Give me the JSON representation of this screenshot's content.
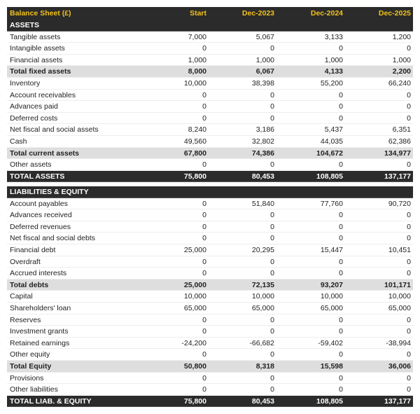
{
  "header": {
    "title": "Balance Sheet (£)",
    "columns": [
      "Start",
      "Dec-2023",
      "Dec-2024",
      "Dec-2025"
    ]
  },
  "sections": [
    {
      "title": "ASSETS",
      "rows": [
        {
          "label": "Tangible assets",
          "values": [
            "7,000",
            "5,067",
            "3,133",
            "1,200"
          ]
        },
        {
          "label": "Intangible assets",
          "values": [
            "0",
            "0",
            "0",
            "0"
          ]
        },
        {
          "label": "Financial assets",
          "values": [
            "1,000",
            "1,000",
            "1,000",
            "1,000"
          ]
        },
        {
          "label": "Total fixed assets",
          "values": [
            "8,000",
            "6,067",
            "4,133",
            "2,200"
          ],
          "kind": "subtotal"
        },
        {
          "label": "Inventory",
          "values": [
            "10,000",
            "38,398",
            "55,200",
            "66,240"
          ]
        },
        {
          "label": "Account receivables",
          "values": [
            "0",
            "0",
            "0",
            "0"
          ]
        },
        {
          "label": "Advances paid",
          "values": [
            "0",
            "0",
            "0",
            "0"
          ]
        },
        {
          "label": "Deferred costs",
          "values": [
            "0",
            "0",
            "0",
            "0"
          ]
        },
        {
          "label": "Net fiscal and social assets",
          "values": [
            "8,240",
            "3,186",
            "5,437",
            "6,351"
          ]
        },
        {
          "label": "Cash",
          "values": [
            "49,560",
            "32,802",
            "44,035",
            "62,386"
          ]
        },
        {
          "label": "Total current assets",
          "values": [
            "67,800",
            "74,386",
            "104,672",
            "134,977"
          ],
          "kind": "subtotal"
        },
        {
          "label": "Other assets",
          "values": [
            "0",
            "0",
            "0",
            "0"
          ]
        },
        {
          "label": "TOTAL ASSETS",
          "values": [
            "75,800",
            "80,453",
            "108,805",
            "137,177"
          ],
          "kind": "total"
        }
      ]
    },
    {
      "title": "LIABILITIES & EQUITY",
      "rows": [
        {
          "label": "Account payables",
          "values": [
            "0",
            "51,840",
            "77,760",
            "90,720"
          ]
        },
        {
          "label": "Advances received",
          "values": [
            "0",
            "0",
            "0",
            "0"
          ]
        },
        {
          "label": "Deferred revenues",
          "values": [
            "0",
            "0",
            "0",
            "0"
          ]
        },
        {
          "label": "Net fiscal and social debts",
          "values": [
            "0",
            "0",
            "0",
            "0"
          ]
        },
        {
          "label": "Financial debt",
          "values": [
            "25,000",
            "20,295",
            "15,447",
            "10,451"
          ]
        },
        {
          "label": "Overdraft",
          "values": [
            "0",
            "0",
            "0",
            "0"
          ]
        },
        {
          "label": "Accrued interests",
          "values": [
            "0",
            "0",
            "0",
            "0"
          ]
        },
        {
          "label": "Total debts",
          "values": [
            "25,000",
            "72,135",
            "93,207",
            "101,171"
          ],
          "kind": "subtotal"
        },
        {
          "label": "Capital",
          "values": [
            "10,000",
            "10,000",
            "10,000",
            "10,000"
          ]
        },
        {
          "label": "Shareholders' loan",
          "values": [
            "65,000",
            "65,000",
            "65,000",
            "65,000"
          ]
        },
        {
          "label": "Reserves",
          "values": [
            "0",
            "0",
            "0",
            "0"
          ]
        },
        {
          "label": "Investment grants",
          "values": [
            "0",
            "0",
            "0",
            "0"
          ]
        },
        {
          "label": "Retained earnings",
          "values": [
            "-24,200",
            "-66,682",
            "-59,402",
            "-38,994"
          ]
        },
        {
          "label": "Other equity",
          "values": [
            "0",
            "0",
            "0",
            "0"
          ]
        },
        {
          "label": "Total Equity",
          "values": [
            "50,800",
            "8,318",
            "15,598",
            "36,006"
          ],
          "kind": "subtotal"
        },
        {
          "label": "Provisions",
          "values": [
            "0",
            "0",
            "0",
            "0"
          ]
        },
        {
          "label": "Other liabilities",
          "values": [
            "0",
            "0",
            "0",
            "0"
          ]
        },
        {
          "label": "TOTAL LIAB. & EQUITY",
          "values": [
            "75,800",
            "80,453",
            "108,805",
            "137,177"
          ],
          "kind": "total"
        }
      ]
    }
  ]
}
